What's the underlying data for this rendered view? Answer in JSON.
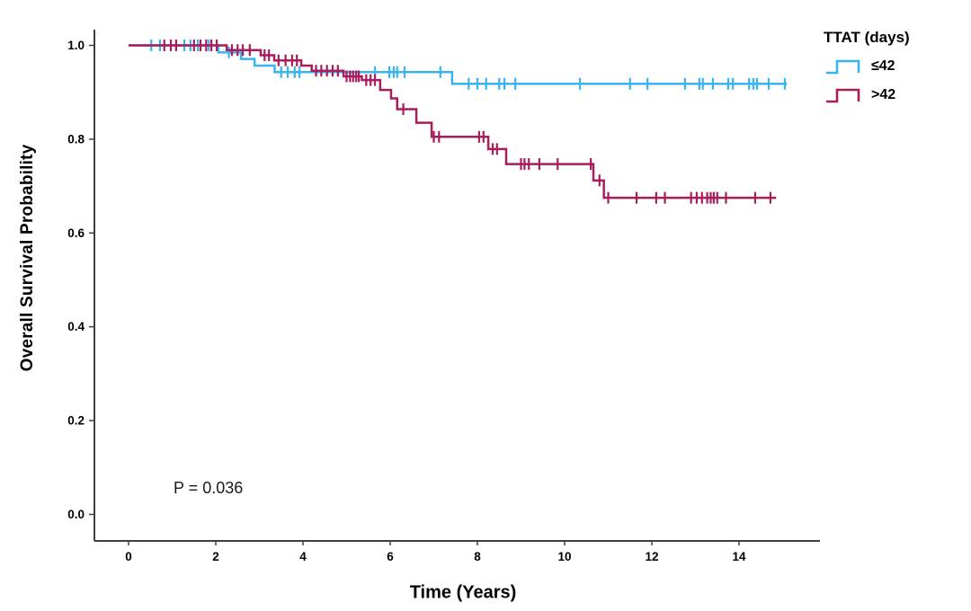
{
  "figure": {
    "ylabel": "Overall Survival Probability",
    "xlabel": "Time (Years)",
    "annotation_text": "P = 0.036",
    "legend_title": "TTAT (days)",
    "legend_entries": [
      {
        "label": "≤42",
        "color": "#38B4F0"
      },
      {
        "label": ">42",
        "color": "#A81D5C"
      }
    ]
  },
  "colors": {
    "axis": "#3f3f3f",
    "text": "#000000",
    "background": "#ffffff",
    "series_le42": "#38B4F0",
    "series_gt42": "#A81D5C"
  },
  "chart_data": {
    "type": "line",
    "subtype": "kaplan-meier-step",
    "title": "",
    "xlabel": "Time (Years)",
    "ylabel": "Overall Survival Probability",
    "xlim": [
      -0.8,
      15.9
    ],
    "ylim": [
      -0.05,
      1.04
    ],
    "x_ticks": [
      "0",
      "2",
      "4",
      "6",
      "8",
      "10",
      "12",
      "14"
    ],
    "x_tick_values": [
      0,
      2,
      4,
      6,
      8,
      10,
      12,
      14
    ],
    "y_ticks": [
      "0.0",
      "0.2",
      "0.4",
      "0.6",
      "0.8",
      "1.0"
    ],
    "y_tick_values": [
      0.0,
      0.2,
      0.4,
      0.6,
      0.8,
      1.0
    ],
    "grid": false,
    "legend_position": "top-right",
    "legend_title": "TTAT (days)",
    "annotation": {
      "text": "P = 0.036",
      "x": 1.05,
      "y": 0.05
    },
    "series": [
      {
        "name": "≤42",
        "color": "#38B4F0",
        "steps": [
          [
            0,
            1.0
          ],
          [
            2.06,
            0.985
          ],
          [
            2.58,
            0.971
          ],
          [
            2.89,
            0.957
          ],
          [
            3.35,
            0.943
          ],
          [
            7.42,
            0.918
          ],
          [
            15.1,
            0.918
          ]
        ],
        "censor_marks": [
          [
            0.52,
            1.0
          ],
          [
            0.72,
            1.0
          ],
          [
            1.28,
            1.0
          ],
          [
            1.42,
            1.0
          ],
          [
            1.59,
            1.0
          ],
          [
            1.84,
            1.0
          ],
          [
            2.3,
            0.985
          ],
          [
            3.5,
            0.943
          ],
          [
            3.65,
            0.943
          ],
          [
            3.81,
            0.943
          ],
          [
            3.92,
            0.943
          ],
          [
            5.65,
            0.943
          ],
          [
            5.98,
            0.943
          ],
          [
            6.08,
            0.943
          ],
          [
            6.16,
            0.943
          ],
          [
            6.33,
            0.943
          ],
          [
            7.15,
            0.943
          ],
          [
            7.8,
            0.918
          ],
          [
            8.0,
            0.918
          ],
          [
            8.2,
            0.918
          ],
          [
            8.5,
            0.918
          ],
          [
            8.62,
            0.918
          ],
          [
            8.87,
            0.918
          ],
          [
            10.35,
            0.918
          ],
          [
            11.5,
            0.918
          ],
          [
            11.9,
            0.918
          ],
          [
            12.76,
            0.918
          ],
          [
            13.09,
            0.918
          ],
          [
            13.17,
            0.918
          ],
          [
            13.4,
            0.918
          ],
          [
            13.75,
            0.918
          ],
          [
            13.86,
            0.918
          ],
          [
            14.23,
            0.918
          ],
          [
            14.33,
            0.918
          ],
          [
            14.41,
            0.918
          ],
          [
            14.68,
            0.918
          ],
          [
            15.05,
            0.918
          ]
        ]
      },
      {
        "name": ">42",
        "color": "#A81D5C",
        "steps": [
          [
            0,
            1.0
          ],
          [
            2.25,
            0.99
          ],
          [
            3.03,
            0.979
          ],
          [
            3.34,
            0.968
          ],
          [
            3.96,
            0.957
          ],
          [
            4.2,
            0.946
          ],
          [
            4.93,
            0.934
          ],
          [
            5.35,
            0.926
          ],
          [
            5.77,
            0.905
          ],
          [
            6.02,
            0.887
          ],
          [
            6.16,
            0.864
          ],
          [
            6.6,
            0.835
          ],
          [
            6.95,
            0.805
          ],
          [
            8.25,
            0.779
          ],
          [
            8.66,
            0.747
          ],
          [
            10.66,
            0.712
          ],
          [
            10.9,
            0.675
          ],
          [
            14.85,
            0.675
          ]
        ],
        "censor_marks": [
          [
            0.82,
            1.0
          ],
          [
            0.97,
            1.0
          ],
          [
            1.09,
            1.0
          ],
          [
            1.5,
            1.0
          ],
          [
            1.65,
            1.0
          ],
          [
            1.78,
            1.0
          ],
          [
            1.9,
            1.0
          ],
          [
            2.02,
            1.0
          ],
          [
            2.37,
            0.99
          ],
          [
            2.5,
            0.99
          ],
          [
            2.62,
            0.99
          ],
          [
            2.78,
            0.99
          ],
          [
            3.12,
            0.979
          ],
          [
            3.22,
            0.979
          ],
          [
            3.44,
            0.968
          ],
          [
            3.6,
            0.968
          ],
          [
            3.75,
            0.968
          ],
          [
            3.86,
            0.968
          ],
          [
            4.3,
            0.946
          ],
          [
            4.42,
            0.946
          ],
          [
            4.55,
            0.946
          ],
          [
            4.68,
            0.946
          ],
          [
            4.8,
            0.946
          ],
          [
            5.0,
            0.934
          ],
          [
            5.08,
            0.934
          ],
          [
            5.15,
            0.934
          ],
          [
            5.22,
            0.934
          ],
          [
            5.28,
            0.934
          ],
          [
            5.45,
            0.926
          ],
          [
            5.55,
            0.926
          ],
          [
            5.65,
            0.926
          ],
          [
            6.3,
            0.864
          ],
          [
            7.0,
            0.805
          ],
          [
            7.12,
            0.805
          ],
          [
            8.04,
            0.805
          ],
          [
            8.14,
            0.805
          ],
          [
            8.35,
            0.779
          ],
          [
            8.45,
            0.779
          ],
          [
            9.0,
            0.747
          ],
          [
            9.08,
            0.747
          ],
          [
            9.18,
            0.747
          ],
          [
            9.42,
            0.747
          ],
          [
            9.84,
            0.747
          ],
          [
            10.6,
            0.747
          ],
          [
            10.8,
            0.712
          ],
          [
            11.0,
            0.675
          ],
          [
            11.65,
            0.675
          ],
          [
            12.1,
            0.675
          ],
          [
            12.3,
            0.675
          ],
          [
            12.9,
            0.675
          ],
          [
            13.03,
            0.675
          ],
          [
            13.15,
            0.675
          ],
          [
            13.27,
            0.675
          ],
          [
            13.35,
            0.675
          ],
          [
            13.42,
            0.675
          ],
          [
            13.5,
            0.675
          ],
          [
            13.7,
            0.675
          ],
          [
            14.37,
            0.675
          ],
          [
            14.72,
            0.675
          ]
        ]
      }
    ]
  }
}
